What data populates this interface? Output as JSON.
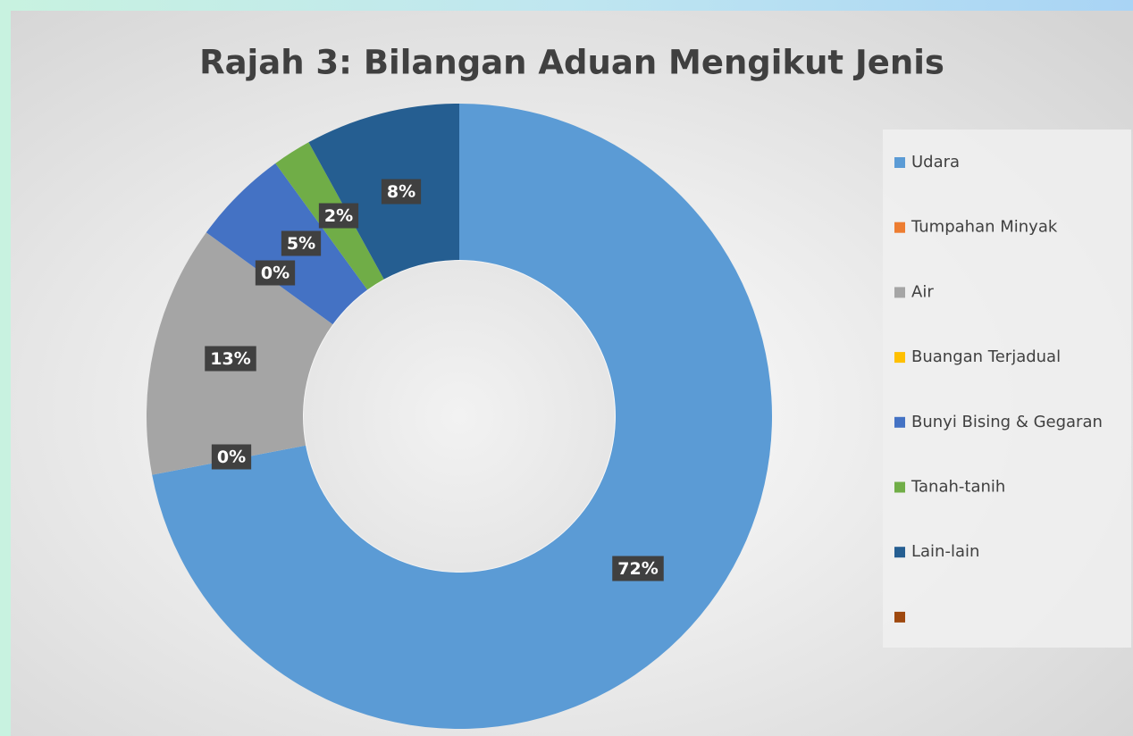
{
  "chart_data": {
    "type": "donut",
    "title": "Rajah 3: Bilangan Aduan Mengikut Jenis",
    "categories": [
      "Udara",
      "Tumpahan Minyak",
      "Air",
      "Buangan Terjadual",
      "Bunyi Bising & Gegaran",
      "Tanah-tanih",
      "Lain-lain",
      null
    ],
    "values": [
      72,
      0,
      13,
      0,
      5,
      2,
      8,
      null
    ],
    "colors": [
      "#5b9bd5",
      "#ed7d31",
      "#a5a5a5",
      "#ffc000",
      "#4472c4",
      "#70ad47",
      "#255e91",
      "#9e480e"
    ],
    "legend": "right"
  }
}
